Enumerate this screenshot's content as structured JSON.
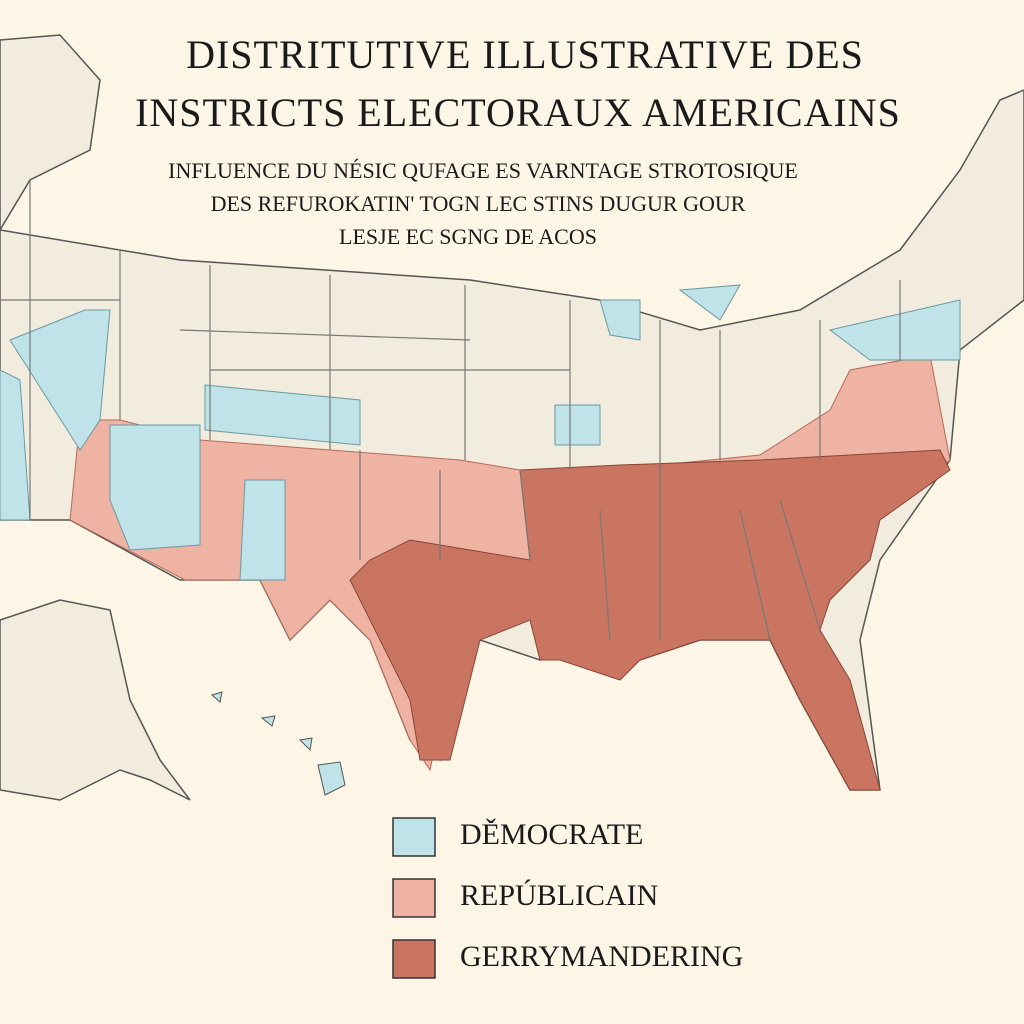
{
  "title": {
    "lines": [
      "DISTRITUTIVE ILLUSTRATIVE DES",
      "INSTRICTS ELECTORAUX AMERICAINS"
    ]
  },
  "subtitle": {
    "lines": [
      "INFLUENCE DU NÉSIC QUFAGE ES VARNTAGE STROTOSIQUE",
      "DES REFUROKATIN' TOGN LEC STINS DUGUR GOUR",
      "LESJE EC SGNG DE ACOS"
    ]
  },
  "legend": {
    "items": [
      {
        "label": "DĚMOCRATE",
        "color": "#bfe3e8"
      },
      {
        "label": "REPÚBLICAIN",
        "color": "#eeb3a3"
      },
      {
        "label": "GERRYMANDERING",
        "color": "#c97561"
      }
    ]
  }
}
